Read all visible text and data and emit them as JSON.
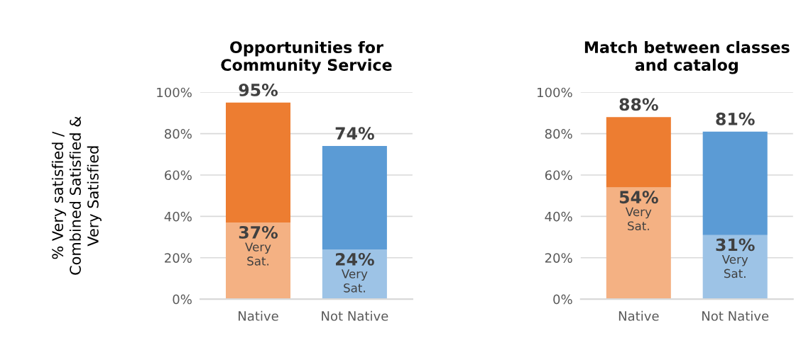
{
  "chart_data": [
    {
      "type": "bar",
      "stacked": true,
      "title": "Opportunities for\nCommunity Service",
      "ylabel": "% Very satisfied /\nCombined Satisfied &\nVery Satisfied",
      "categories": [
        "Native",
        "Not Native"
      ],
      "series": [
        {
          "name": "Very Sat.",
          "colors": [
            "#f4b183",
            "#9dc3e6"
          ],
          "values": [
            37,
            24
          ],
          "value_labels": [
            "37%",
            "24%"
          ]
        },
        {
          "colors": [
            "#ed7d31",
            "#5b9bd5"
          ],
          "values": [
            58,
            50
          ]
        }
      ],
      "totals": [
        "95%",
        "74%"
      ],
      "ylim": [
        0,
        100
      ],
      "yticks": [
        {
          "value": 0,
          "label": "0%"
        },
        {
          "value": 20,
          "label": "20%"
        },
        {
          "value": 40,
          "label": "40%"
        },
        {
          "value": 60,
          "label": "60%"
        },
        {
          "value": 80,
          "label": "80%"
        },
        {
          "value": 100,
          "label": "100%"
        }
      ],
      "grid": "y",
      "legend": false
    },
    {
      "type": "bar",
      "stacked": true,
      "title": "Match between classes\nand catalog",
      "categories": [
        "Native",
        "Not Native"
      ],
      "series": [
        {
          "name": "Very Sat.",
          "colors": [
            "#f4b183",
            "#9dc3e6"
          ],
          "values": [
            54,
            31
          ],
          "value_labels": [
            "54%",
            "31%"
          ]
        },
        {
          "colors": [
            "#ed7d31",
            "#5b9bd5"
          ],
          "values": [
            34,
            50
          ]
        }
      ],
      "totals": [
        "88%",
        "81%"
      ],
      "ylim": [
        0,
        100
      ],
      "yticks": [
        {
          "value": 0,
          "label": "0%"
        },
        {
          "value": 20,
          "label": "20%"
        },
        {
          "value": 40,
          "label": "40%"
        },
        {
          "value": 60,
          "label": "60%"
        },
        {
          "value": 80,
          "label": "80%"
        },
        {
          "value": 100,
          "label": "100%"
        }
      ],
      "grid": "y",
      "legend": false
    }
  ]
}
